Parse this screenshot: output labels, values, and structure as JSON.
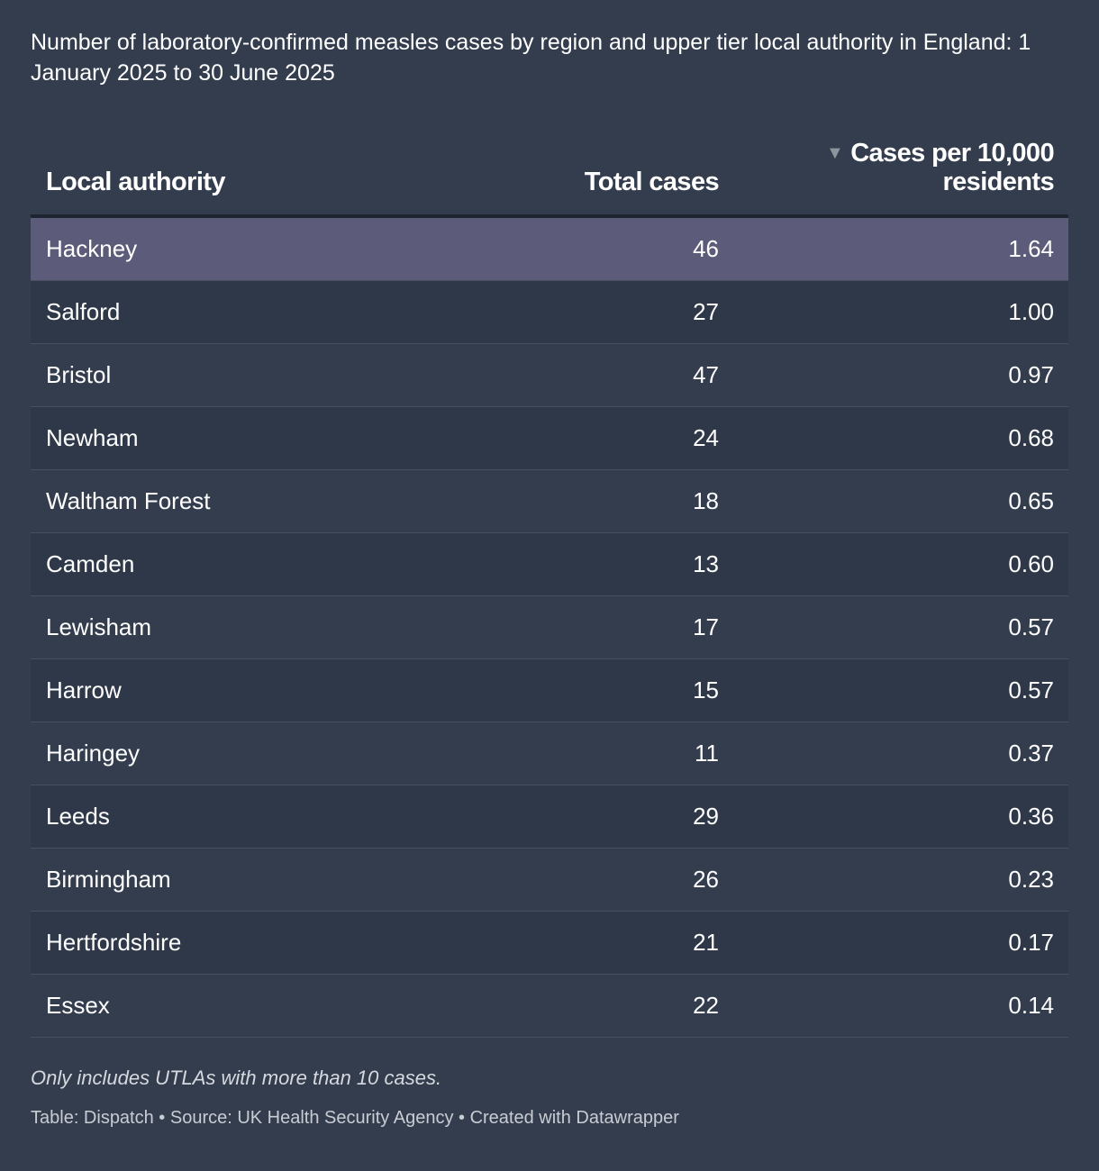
{
  "title": "Number of laboratory-confirmed measles cases by region and upper tier local authority in England: 1 January 2025 to 30 June 2025",
  "chart_data": {
    "type": "table",
    "columns": [
      "Local authority",
      "Total cases",
      "Cases per 10,000 residents"
    ],
    "sort": {
      "column": "Cases per 10,000 residents",
      "direction": "descending"
    },
    "highlighted_row": "Hackney",
    "rows": [
      {
        "name": "Hackney",
        "total": "46",
        "rate": "1.64"
      },
      {
        "name": "Salford",
        "total": "27",
        "rate": "1.00"
      },
      {
        "name": "Bristol",
        "total": "47",
        "rate": "0.97"
      },
      {
        "name": "Newham",
        "total": "24",
        "rate": "0.68"
      },
      {
        "name": "Waltham Forest",
        "total": "18",
        "rate": "0.65"
      },
      {
        "name": "Camden",
        "total": "13",
        "rate": "0.60"
      },
      {
        "name": "Lewisham",
        "total": "17",
        "rate": "0.57"
      },
      {
        "name": "Harrow",
        "total": "15",
        "rate": "0.57"
      },
      {
        "name": "Haringey",
        "total": "11",
        "rate": "0.37"
      },
      {
        "name": "Leeds",
        "total": "29",
        "rate": "0.36"
      },
      {
        "name": "Birmingham",
        "total": "26",
        "rate": "0.23"
      },
      {
        "name": "Hertfordshire",
        "total": "21",
        "rate": "0.17"
      },
      {
        "name": "Essex",
        "total": "22",
        "rate": "0.14"
      }
    ]
  },
  "notes": "Only includes UTLAs with more than 10 cases.",
  "footer": "Table: Dispatch • Source: UK Health Security Agency • Created with Datawrapper",
  "colors": {
    "background": "#333d4e",
    "row_alt": "#2f3848",
    "highlight": "#5c5b79",
    "header_rule": "#1f2530",
    "row_rule": "#48505e"
  },
  "icons": {
    "sort": "sort-descending-icon"
  }
}
